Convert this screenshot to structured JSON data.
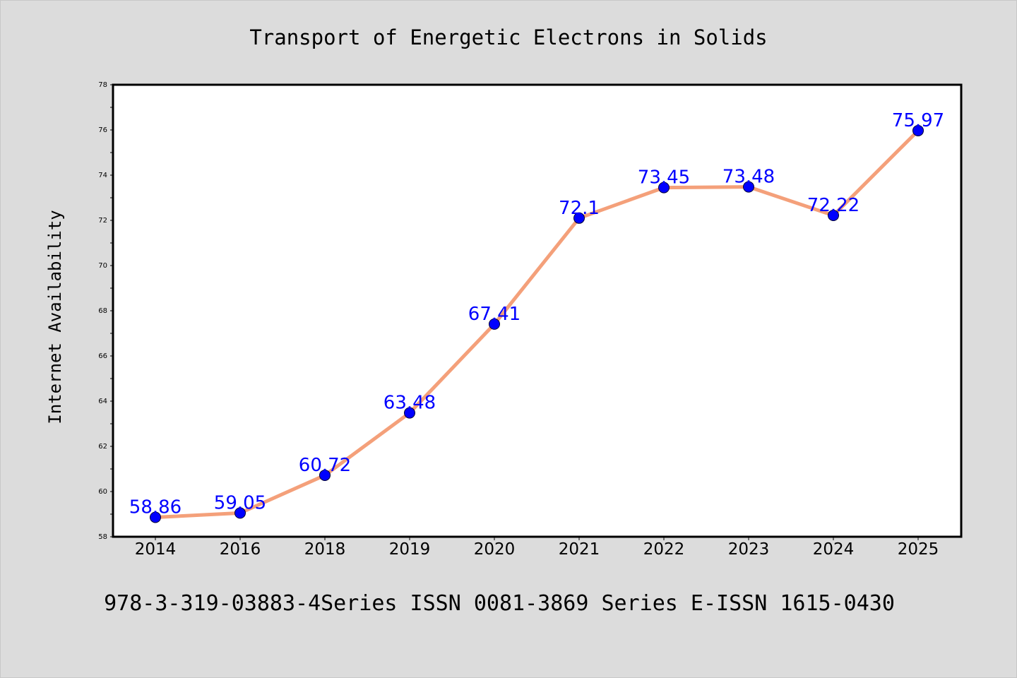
{
  "chart_data": {
    "type": "line",
    "title": "Transport of Energetic Electrons in Solids",
    "ylabel": "Internet Availability",
    "xlabel": "",
    "footer": "978-3-319-03883-4Series ISSN 0081-3869 Series E-ISSN 1615-0430",
    "categories": [
      "2014",
      "2016",
      "2018",
      "2019",
      "2020",
      "2021",
      "2022",
      "2023",
      "2024",
      "2025"
    ],
    "series": [
      {
        "values": [
          58.86,
          59.05,
          60.72,
          63.48,
          67.41,
          72.1,
          73.45,
          73.48,
          72.22,
          75.97
        ],
        "labels": [
          "58.86",
          "59.05",
          "60.72",
          "63.48",
          "67.41",
          "72.1",
          "73.45",
          "73.48",
          "72.22",
          "75.97"
        ],
        "line_color": "#f4a07a",
        "marker_color": "#0000ff"
      }
    ],
    "ylim": [
      58,
      78
    ],
    "yticks": [
      "58",
      "60",
      "62",
      "64",
      "66",
      "68",
      "70",
      "72",
      "74",
      "76",
      "78"
    ],
    "grid": false,
    "legend": "none",
    "colors": {
      "background": "#dcdcdc",
      "plot_area": "#ffffff",
      "axis": "#000000",
      "label_text": "#0000ff"
    }
  }
}
